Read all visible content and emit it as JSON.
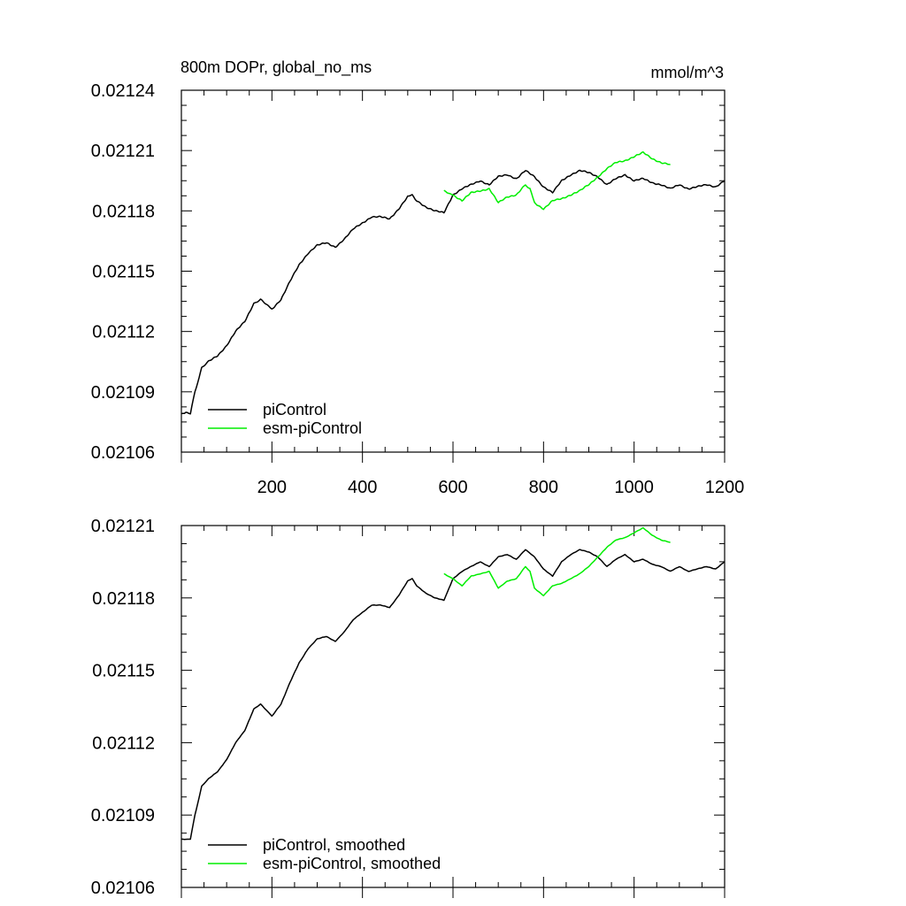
{
  "figure": {
    "title_left": "800m DOPr, global_no_ms",
    "title_right": "mmol/m^3"
  },
  "colors": {
    "piControl": "#000000",
    "esm_piControl": "#00ee00"
  },
  "chart_data": [
    {
      "type": "line",
      "panel": "top",
      "title": "800m DOPr, global_no_ms",
      "units": "mmol/m^3",
      "xlim": [
        0,
        1200
      ],
      "ylim": [
        0.02106,
        0.02124
      ],
      "xticks": [
        200,
        400,
        600,
        800,
        1000,
        1200
      ],
      "xtick_labels": [
        "200",
        "400",
        "600",
        "800",
        "1000",
        "1200"
      ],
      "yticks": [
        0.02106,
        0.02109,
        0.02112,
        0.02115,
        0.02118,
        0.02121,
        0.02124
      ],
      "ytick_labels": [
        "0.02106",
        "0.02109",
        "0.02112",
        "0.02115",
        "0.02118",
        "0.02121",
        "0.02124"
      ],
      "legend_position": "bottom-left",
      "grid": false,
      "series": [
        {
          "name": "piControl",
          "color": "#000000",
          "x": [
            0,
            10,
            20,
            30,
            45,
            60,
            80,
            100,
            120,
            140,
            160,
            175,
            190,
            200,
            220,
            240,
            260,
            280,
            300,
            320,
            340,
            360,
            380,
            400,
            420,
            440,
            460,
            480,
            500,
            510,
            520,
            540,
            560,
            580,
            600,
            620,
            640,
            660,
            680,
            700,
            720,
            740,
            760,
            780,
            800,
            820,
            840,
            860,
            880,
            900,
            920,
            940,
            960,
            980,
            1000,
            1020,
            1040,
            1060,
            1080,
            1100,
            1120,
            1140,
            1160,
            1180,
            1200
          ],
          "y": [
            0.021079,
            0.02108,
            0.021079,
            0.02109,
            0.021102,
            0.021105,
            0.021108,
            0.021113,
            0.02112,
            0.021125,
            0.021134,
            0.021136,
            0.021133,
            0.021131,
            0.021136,
            0.021145,
            0.021153,
            0.021159,
            0.021163,
            0.021164,
            0.021162,
            0.021166,
            0.021171,
            0.021174,
            0.021177,
            0.021177,
            0.021176,
            0.021181,
            0.021187,
            0.021188,
            0.021185,
            0.021182,
            0.02118,
            0.021179,
            0.021188,
            0.021191,
            0.021193,
            0.021195,
            0.021193,
            0.021197,
            0.021198,
            0.021196,
            0.0212,
            0.021197,
            0.021192,
            0.021189,
            0.021195,
            0.021198,
            0.0212,
            0.021199,
            0.021197,
            0.021193,
            0.021196,
            0.021198,
            0.021195,
            0.021196,
            0.021194,
            0.021193,
            0.021191,
            0.021193,
            0.021191,
            0.021192,
            0.021193,
            0.021192,
            0.021195
          ]
        },
        {
          "name": "esm-piControl",
          "color": "#00ee00",
          "x": [
            580,
            590,
            600,
            620,
            640,
            660,
            680,
            700,
            720,
            740,
            760,
            770,
            780,
            800,
            820,
            840,
            860,
            880,
            900,
            920,
            940,
            960,
            980,
            1000,
            1020,
            1040,
            1060,
            1080
          ],
          "y": [
            0.02119,
            0.021189,
            0.021188,
            0.021185,
            0.021189,
            0.02119,
            0.021191,
            0.021184,
            0.021187,
            0.021188,
            0.021193,
            0.021191,
            0.021184,
            0.021181,
            0.021185,
            0.021186,
            0.021188,
            0.02119,
            0.021193,
            0.021197,
            0.021201,
            0.021204,
            0.021205,
            0.021207,
            0.021209,
            0.021206,
            0.021204,
            0.021203
          ]
        }
      ]
    },
    {
      "type": "line",
      "panel": "bottom",
      "xlim": [
        0,
        1200
      ],
      "ylim": [
        0.02106,
        0.02121
      ],
      "yticks": [
        0.02106,
        0.02109,
        0.02112,
        0.02115,
        0.02118,
        0.02121
      ],
      "ytick_labels": [
        "0.02106",
        "0.02109",
        "0.02112",
        "0.02115",
        "0.02118",
        "0.02121"
      ],
      "legend_position": "bottom-left",
      "grid": false,
      "series": [
        {
          "name": "piControl, smoothed",
          "color": "#000000",
          "x": [
            0,
            10,
            20,
            30,
            45,
            60,
            80,
            100,
            120,
            140,
            160,
            175,
            190,
            200,
            220,
            240,
            260,
            280,
            300,
            320,
            340,
            360,
            380,
            400,
            420,
            440,
            460,
            480,
            500,
            510,
            520,
            540,
            560,
            580,
            600,
            620,
            640,
            660,
            680,
            700,
            720,
            740,
            760,
            780,
            800,
            820,
            840,
            860,
            880,
            900,
            920,
            940,
            960,
            980,
            1000,
            1020,
            1040,
            1060,
            1080,
            1100,
            1120,
            1140,
            1160,
            1180,
            1200
          ],
          "y": [
            0.02108,
            0.02108,
            0.02108,
            0.02109,
            0.021102,
            0.021105,
            0.021108,
            0.021113,
            0.02112,
            0.021125,
            0.021134,
            0.021136,
            0.021133,
            0.021131,
            0.021136,
            0.021145,
            0.021153,
            0.021159,
            0.021163,
            0.021164,
            0.021162,
            0.021166,
            0.021171,
            0.021174,
            0.021177,
            0.021177,
            0.021176,
            0.021181,
            0.021187,
            0.021188,
            0.021185,
            0.021182,
            0.02118,
            0.021179,
            0.021188,
            0.021191,
            0.021193,
            0.021195,
            0.021193,
            0.021197,
            0.021198,
            0.021196,
            0.0212,
            0.021197,
            0.021192,
            0.021189,
            0.021195,
            0.021198,
            0.0212,
            0.021199,
            0.021197,
            0.021193,
            0.021196,
            0.021198,
            0.021195,
            0.021196,
            0.021194,
            0.021193,
            0.021191,
            0.021193,
            0.021191,
            0.021192,
            0.021193,
            0.021192,
            0.021195
          ]
        },
        {
          "name": "esm-piControl, smoothed",
          "color": "#00ee00",
          "x": [
            580,
            590,
            600,
            620,
            640,
            660,
            680,
            700,
            720,
            740,
            760,
            770,
            780,
            800,
            820,
            840,
            860,
            880,
            900,
            920,
            940,
            960,
            980,
            1000,
            1020,
            1040,
            1060,
            1080
          ],
          "y": [
            0.02119,
            0.021189,
            0.021188,
            0.021185,
            0.021189,
            0.02119,
            0.021191,
            0.021184,
            0.021187,
            0.021188,
            0.021193,
            0.021191,
            0.021184,
            0.021181,
            0.021185,
            0.021186,
            0.021188,
            0.02119,
            0.021193,
            0.021197,
            0.021201,
            0.021204,
            0.021205,
            0.021207,
            0.021209,
            0.021206,
            0.021204,
            0.021203
          ]
        }
      ]
    }
  ]
}
